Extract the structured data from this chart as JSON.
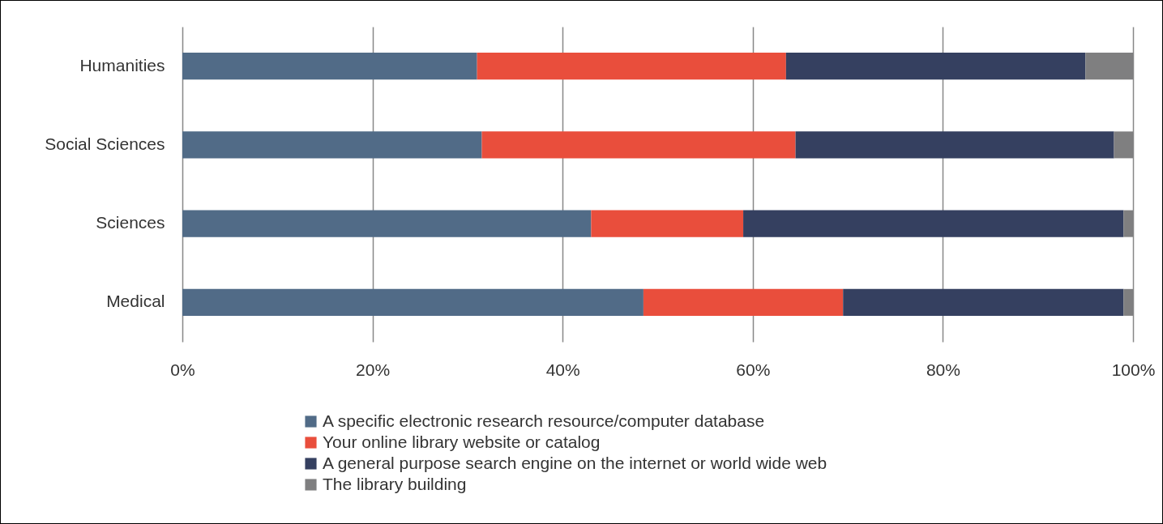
{
  "chart_data": {
    "type": "bar",
    "orientation": "horizontal",
    "stacked": true,
    "categories": [
      "Humanities",
      "Social Sciences",
      "Sciences",
      "Medical"
    ],
    "series": [
      {
        "name": "A specific electronic research resource/computer database",
        "color": "#516b87",
        "values": [
          31,
          31.5,
          43,
          48.5
        ]
      },
      {
        "name": "Your online library website or catalog",
        "color": "#e94e3c",
        "values": [
          32.5,
          33,
          16,
          21
        ]
      },
      {
        "name": "A general purpose search engine on the internet or world wide web",
        "color": "#354060",
        "values": [
          31.5,
          33.5,
          40,
          29.5
        ]
      },
      {
        "name": "The library building",
        "color": "#7f7f80",
        "values": [
          5,
          2,
          1,
          1
        ]
      }
    ],
    "xlim": [
      0,
      100
    ],
    "xticks": [
      {
        "value": 0,
        "label": "0%"
      },
      {
        "value": 20,
        "label": "20%"
      },
      {
        "value": 40,
        "label": "40%"
      },
      {
        "value": 60,
        "label": "60%"
      },
      {
        "value": 80,
        "label": "80%"
      },
      {
        "value": 100,
        "label": "100%"
      }
    ],
    "grid": "x",
    "legend": "bottom"
  }
}
